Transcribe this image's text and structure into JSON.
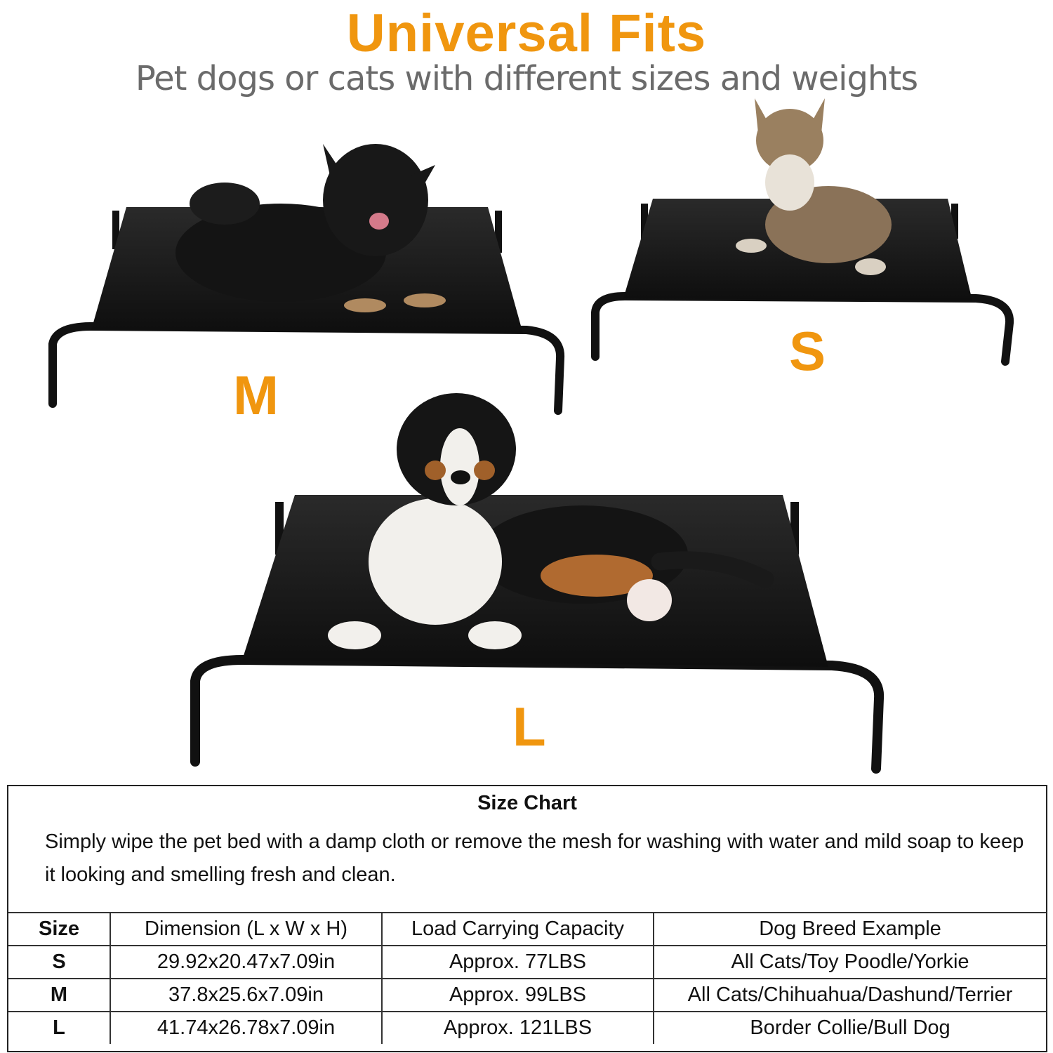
{
  "header": {
    "title": "Universal Fits",
    "subtitle": "Pet dogs or cats with different sizes and weights"
  },
  "beds": [
    {
      "size": "M",
      "pet": "black fluffy dog"
    },
    {
      "size": "S",
      "pet": "tabby kitten"
    },
    {
      "size": "L",
      "pet": "tricolor puppy"
    }
  ],
  "colors": {
    "accent": "#f0960f",
    "subtitle": "#6b6b6b",
    "bed": "#1a1a1a"
  },
  "size_chart": {
    "title": "Size Chart",
    "description": "Simply wipe the pet bed with a damp cloth or remove the mesh for washing with water and mild soap to keep it looking and smelling fresh and clean.",
    "columns": [
      "Size",
      "Dimension (L x W x H)",
      "Load Carrying Capacity",
      "Dog Breed Example"
    ],
    "rows": [
      [
        "S",
        "29.92x20.47x7.09in",
        "Approx. 77LBS",
        "All Cats/Toy Poodle/Yorkie"
      ],
      [
        "M",
        "37.8x25.6x7.09in",
        "Approx. 99LBS",
        "All Cats/Chihuahua/Dashund/Terrier"
      ],
      [
        "L",
        "41.74x26.78x7.09in",
        "Approx. 121LBS",
        "Border Collie/Bull Dog"
      ]
    ]
  }
}
